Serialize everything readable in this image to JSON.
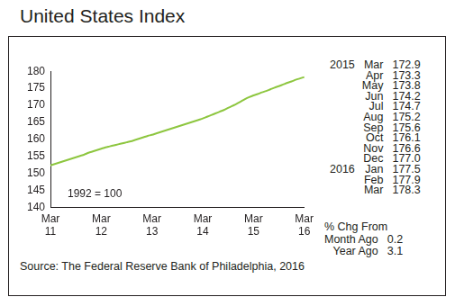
{
  "chart_data": {
    "type": "line",
    "title": "United States Index",
    "categories": [
      "Mar 11",
      null,
      null,
      null,
      null,
      null,
      null,
      null,
      null,
      null,
      null,
      null,
      "Mar 12",
      null,
      null,
      null,
      null,
      null,
      null,
      null,
      null,
      null,
      null,
      null,
      "Mar 13",
      null,
      null,
      null,
      null,
      null,
      null,
      null,
      null,
      null,
      null,
      null,
      "Mar 14",
      null,
      null,
      null,
      null,
      null,
      null,
      null,
      null,
      null,
      null,
      null,
      "Mar 15",
      null,
      null,
      null,
      null,
      null,
      null,
      null,
      null,
      null,
      null,
      null,
      "Mar 16"
    ],
    "values": [
      152.3,
      152.7,
      153.1,
      153.5,
      153.9,
      154.3,
      154.7,
      155.1,
      155.5,
      156.0,
      156.4,
      156.8,
      157.2,
      157.6,
      157.9,
      158.2,
      158.5,
      158.8,
      159.1,
      159.4,
      159.8,
      160.2,
      160.6,
      161.0,
      161.3,
      161.7,
      162.1,
      162.5,
      162.9,
      163.3,
      163.7,
      164.1,
      164.5,
      164.9,
      165.3,
      165.7,
      166.1,
      166.6,
      167.1,
      167.6,
      168.1,
      168.6,
      169.2,
      169.8,
      170.4,
      171.1,
      171.8,
      172.4,
      172.9,
      173.3,
      173.8,
      174.2,
      174.7,
      175.2,
      175.6,
      176.1,
      176.6,
      177.0,
      177.5,
      177.9,
      178.3
    ],
    "color": "#8dc63f",
    "ylim": [
      140,
      180
    ],
    "yticks": [
      140,
      145,
      150,
      155,
      160,
      165,
      170,
      175,
      180
    ],
    "grid": false,
    "annotations": [
      "1992 = 100"
    ]
  },
  "side_table": {
    "rows": [
      {
        "year": "2015",
        "month": "Mar",
        "value": 172.9
      },
      {
        "year": null,
        "month": "Apr",
        "value": 173.3
      },
      {
        "year": null,
        "month": "May",
        "value": 173.8
      },
      {
        "year": null,
        "month": "Jun",
        "value": 174.2
      },
      {
        "year": null,
        "month": "Jul",
        "value": 174.7
      },
      {
        "year": null,
        "month": "Aug",
        "value": 175.2
      },
      {
        "year": null,
        "month": "Sep",
        "value": 175.6
      },
      {
        "year": null,
        "month": "Oct",
        "value": 176.1
      },
      {
        "year": null,
        "month": "Nov",
        "value": 176.6
      },
      {
        "year": null,
        "month": "Dec",
        "value": 177.0
      },
      {
        "year": "2016",
        "month": "Jan",
        "value": 177.5
      },
      {
        "year": null,
        "month": "Feb",
        "value": 177.9
      },
      {
        "year": null,
        "month": "Mar",
        "value": 178.3
      }
    ]
  },
  "change": {
    "heading": "% Chg From",
    "rows": [
      {
        "label": "Month Ago",
        "value": 0.2
      },
      {
        "label": "Year Ago",
        "value": 3.1
      }
    ]
  },
  "source": "Source: The Federal Reserve Bank of Philadelphia, 2016"
}
